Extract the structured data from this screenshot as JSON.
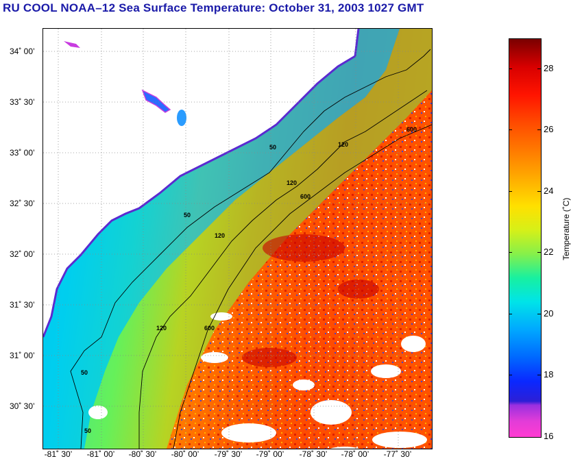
{
  "title": "RU COOL  NOAA–12  Sea Surface Temperature:  October 31, 2003 1027 GMT",
  "lat_labels": [
    "34˚ 00’",
    "33˚ 30’",
    "33˚ 00’",
    "32˚ 30’",
    "32˚ 00’",
    "31˚ 30’",
    "31˚ 00’",
    "30˚ 30’"
  ],
  "lon_labels": [
    "-81˚ 30’",
    "-81˚ 00’",
    "-80˚ 30’",
    "-80˚ 00’",
    "-79˚ 30’",
    "-79˚ 00’",
    "-78˚ 30’",
    "-78˚ 00’",
    "-77˚ 30’"
  ],
  "colorbar": {
    "ticks": [
      "28",
      "26",
      "24",
      "22",
      "20",
      "18",
      "16"
    ],
    "label": "Temperature (˚C)",
    "min": 16,
    "max": 29
  },
  "contours": {
    "label_50": "50",
    "label_120": "120",
    "label_600": "600"
  }
}
